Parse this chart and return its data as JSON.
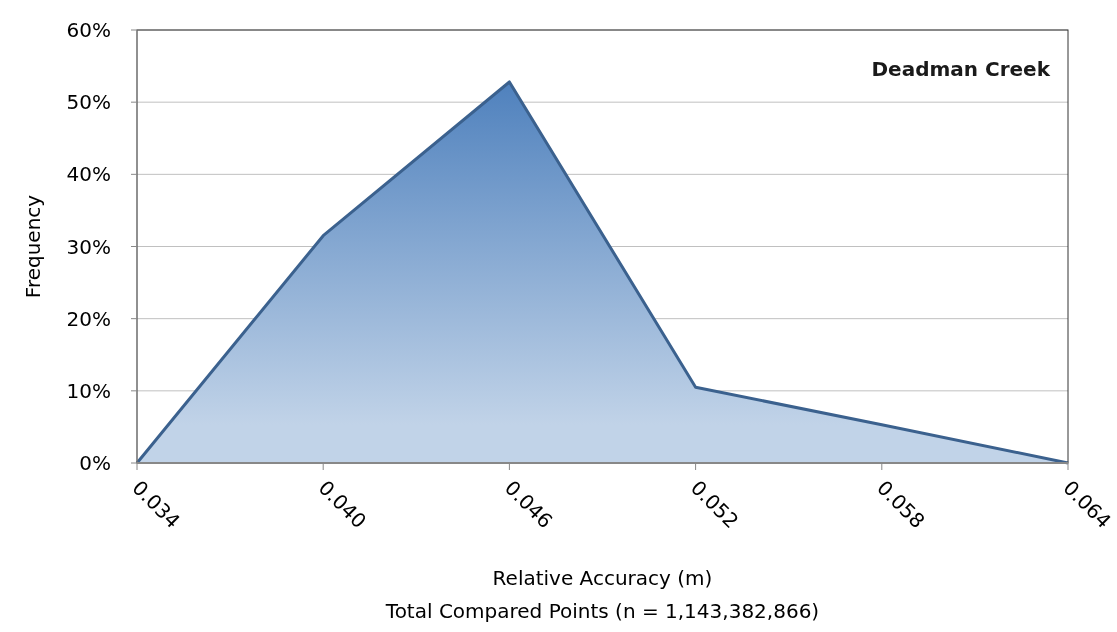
{
  "chart_data": {
    "type": "area",
    "title": "Deadman Creek",
    "xlabel": "Relative Accuracy (m)",
    "ylabel": "Frequency",
    "annotations": [
      "Total Compared Points (n = 1,143,382,866)"
    ],
    "x": [
      0.034,
      0.04,
      0.046,
      0.052,
      0.058,
      0.064
    ],
    "series": [
      {
        "color": "#4f81bd",
        "values": [
          0,
          31.5,
          52.8,
          10.5,
          5.3,
          0
        ]
      }
    ],
    "xlim": [
      0.034,
      0.064
    ],
    "xticks": [
      {
        "value": 0.034,
        "label": "0.034"
      },
      {
        "value": 0.04,
        "label": "0.040"
      },
      {
        "value": 0.046,
        "label": "0.046"
      },
      {
        "value": 0.052,
        "label": "0.052"
      },
      {
        "value": 0.058,
        "label": "0.058"
      },
      {
        "value": 0.064,
        "label": "0.064"
      }
    ],
    "ylim": [
      0,
      60
    ],
    "yticks": [
      {
        "value": 0,
        "label": "0%"
      },
      {
        "value": 10,
        "label": "10%"
      },
      {
        "value": 20,
        "label": "20%"
      },
      {
        "value": 30,
        "label": "30%"
      },
      {
        "value": 40,
        "label": "40%"
      },
      {
        "value": 50,
        "label": "50%"
      },
      {
        "value": 60,
        "label": "60%"
      }
    ],
    "grid": "y"
  }
}
